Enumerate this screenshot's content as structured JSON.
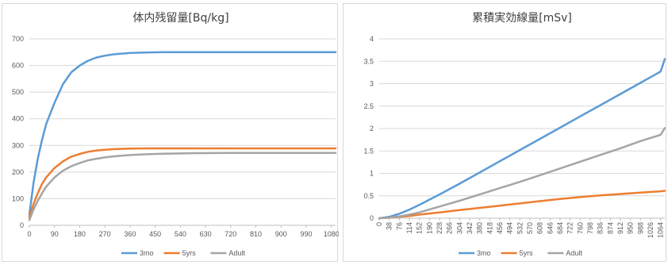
{
  "chart_data": [
    {
      "type": "line",
      "title": "体内残留量[Bq/kg]",
      "xlabel": "",
      "ylabel": "",
      "xlim": [
        0,
        1095
      ],
      "ylim": [
        0,
        700
      ],
      "yticks": [
        0,
        100,
        200,
        300,
        400,
        500,
        600,
        700
      ],
      "xticks": [
        0,
        90,
        180,
        270,
        360,
        450,
        540,
        630,
        720,
        810,
        900,
        990,
        1080
      ],
      "grid": true,
      "legend": "bottom",
      "x": [
        0,
        15,
        30,
        45,
        60,
        90,
        120,
        150,
        180,
        210,
        240,
        270,
        300,
        360,
        420,
        480,
        540,
        600,
        720,
        900,
        1095
      ],
      "series": [
        {
          "name": "3mo",
          "color": "#5b9bd5",
          "values": [
            40,
            160,
            250,
            320,
            380,
            460,
            530,
            575,
            600,
            618,
            630,
            637,
            642,
            647,
            649,
            650,
            650,
            650,
            650,
            650,
            650
          ]
        },
        {
          "name": "5yrs",
          "color": "#ed7d31",
          "values": [
            30,
            80,
            120,
            155,
            180,
            215,
            240,
            258,
            268,
            276,
            281,
            284,
            286,
            288,
            289,
            289,
            289,
            289,
            289,
            289,
            289
          ]
        },
        {
          "name": "Adult",
          "color": "#a5a5a5",
          "values": [
            20,
            60,
            92,
            120,
            145,
            180,
            205,
            222,
            234,
            244,
            250,
            255,
            259,
            264,
            267,
            269,
            270,
            271,
            272,
            272,
            272
          ]
        }
      ]
    },
    {
      "type": "line",
      "title": "累積実効線量[mSv]",
      "xlabel": "",
      "ylabel": "",
      "xlim": [
        0,
        1080
      ],
      "ylim": [
        0,
        4
      ],
      "yticks": [
        0,
        0.5,
        1,
        1.5,
        2,
        2.5,
        3,
        3.5,
        4
      ],
      "xticks": [
        0,
        38,
        76,
        114,
        152,
        190,
        228,
        266,
        304,
        342,
        380,
        418,
        456,
        494,
        532,
        570,
        608,
        646,
        684,
        722,
        760,
        798,
        836,
        874,
        912,
        950,
        988,
        1026,
        1064
      ],
      "grid": true,
      "legend": "bottom",
      "x": [
        0,
        38,
        76,
        114,
        152,
        228,
        304,
        380,
        456,
        532,
        608,
        684,
        760,
        836,
        912,
        988,
        1064,
        1080
      ],
      "series": [
        {
          "name": "3mo",
          "color": "#5b9bd5",
          "values": [
            0,
            0.03,
            0.1,
            0.19,
            0.3,
            0.53,
            0.77,
            1.02,
            1.27,
            1.52,
            1.77,
            2.02,
            2.27,
            2.52,
            2.77,
            3.02,
            3.27,
            3.55
          ]
        },
        {
          "name": "5yrs",
          "color": "#ed7d31",
          "values": [
            0,
            0.01,
            0.03,
            0.05,
            0.08,
            0.13,
            0.18,
            0.23,
            0.28,
            0.33,
            0.38,
            0.43,
            0.47,
            0.51,
            0.54,
            0.57,
            0.6,
            0.61
          ]
        },
        {
          "name": "Adult",
          "color": "#a5a5a5",
          "values": [
            0,
            0.01,
            0.04,
            0.08,
            0.13,
            0.26,
            0.39,
            0.53,
            0.67,
            0.81,
            0.96,
            1.11,
            1.26,
            1.41,
            1.56,
            1.72,
            1.86,
            2.01
          ]
        }
      ]
    }
  ]
}
